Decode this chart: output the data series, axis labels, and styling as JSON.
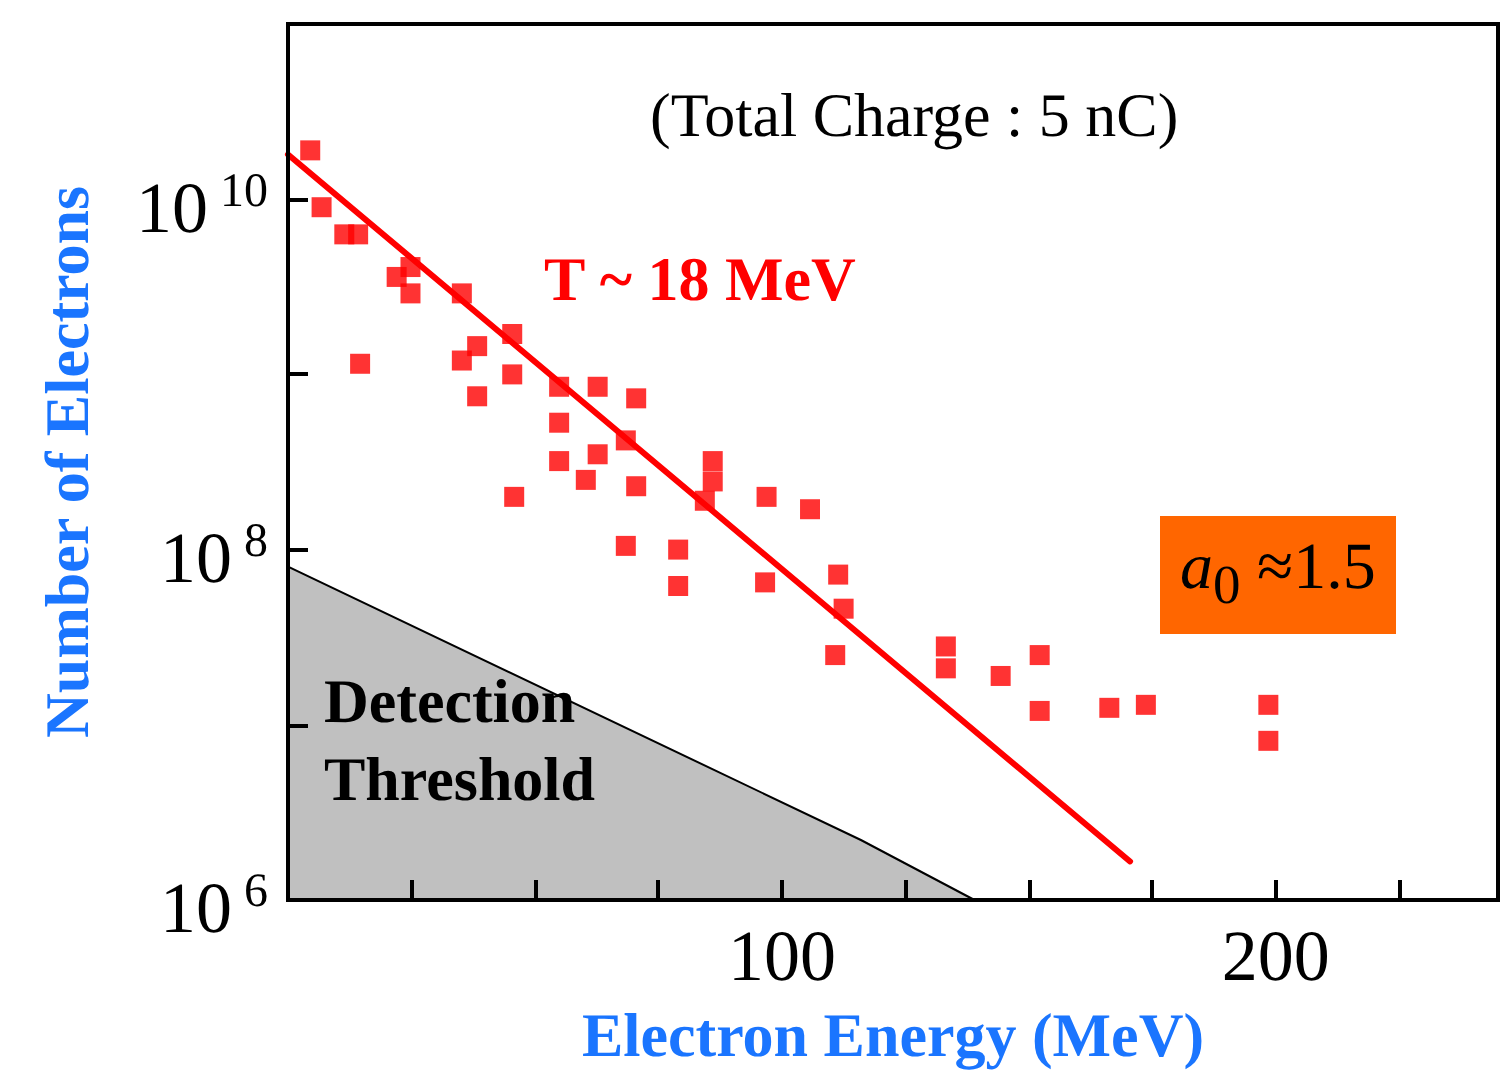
{
  "chart_data": {
    "type": "scatter",
    "xlabel": "Electron Energy (MeV)",
    "ylabel": "Number of Electrons",
    "annotations": [
      "(Total Charge : 5 nC)",
      "a$_{0}$ ≈1.5"
    ],
    "log": "y",
    "grid": false,
    "legend": false,
    "xlim": [
      0,
      245
    ],
    "xticks": [
      {
        "value": 25,
        "label": null
      },
      {
        "value": 50,
        "label": null
      },
      {
        "value": 75,
        "label": null
      },
      100,
      {
        "value": 125,
        "label": null
      },
      {
        "value": 150,
        "label": null
      },
      {
        "value": 175,
        "label": null
      },
      200,
      {
        "value": 225,
        "label": null
      }
    ],
    "ylim": [
      1000000,
      100000000000
    ],
    "yticks": [
      {
        "value": 1000000,
        "label": "10$^{6}$"
      },
      {
        "value": 10000000,
        "label": null
      },
      {
        "value": 100000000,
        "label": "10$^{8}$"
      },
      {
        "value": 1000000000,
        "label": null
      },
      {
        "value": 10000000000,
        "label": "10$^{10}$"
      }
    ],
    "series": [
      {
        "type": "area",
        "name": "Detection Threshold",
        "color": "#c0c0c0",
        "marker": "none",
        "x": [
          0,
          116,
          139
        ],
        "values": [
          80000000,
          2200000,
          1000000
        ]
      },
      {
        "type": "line",
        "name": "T ~ 18 MeV",
        "color": "#ff0000",
        "marker": "none",
        "line_style": "solid",
        "x": [
          0,
          170.5
        ],
        "values": [
          18000000000,
          1660000
        ]
      },
      {
        "color": "#ff0000",
        "marker": "square",
        "x": [
          4.5,
          6.8,
          11.4,
          14.2,
          14.6,
          22,
          24.8,
          24.8,
          35.2,
          35.2,
          38.3,
          38.3,
          45.4,
          45.4,
          45.8,
          54.9,
          54.9,
          54.9,
          62.7,
          62.7,
          60.3,
          70.5,
          70.5,
          86,
          86,
          84.4,
          96.9,
          105.7,
          68.4,
          68.4,
          79,
          79,
          96.6,
          111.4,
          112.5,
          110.8,
          133.2,
          133.2,
          144.3,
          152.2,
          152.2,
          166.3,
          173.7,
          198.5,
          198.5
        ],
        "values": [
          19000000000,
          9000000000,
          6300000000,
          6300000000,
          1150000000,
          3600000000,
          4100000000,
          2900000000,
          2900000000,
          1200000000,
          1450000000,
          750000000,
          1700000000,
          1000000000,
          200000000,
          850000000,
          530000000,
          320000000,
          850000000,
          350000000,
          250000000,
          730000000,
          230000000,
          320000000,
          245000000,
          190000000,
          200000000,
          170000000,
          420000000,
          105000000,
          100000000,
          62000000,
          65000000,
          72000000,
          46000000,
          25000000,
          28000000,
          21000000,
          19000000,
          25000000,
          12000000,
          12500000,
          13000000,
          13000000,
          8100000
        ]
      }
    ]
  }
}
